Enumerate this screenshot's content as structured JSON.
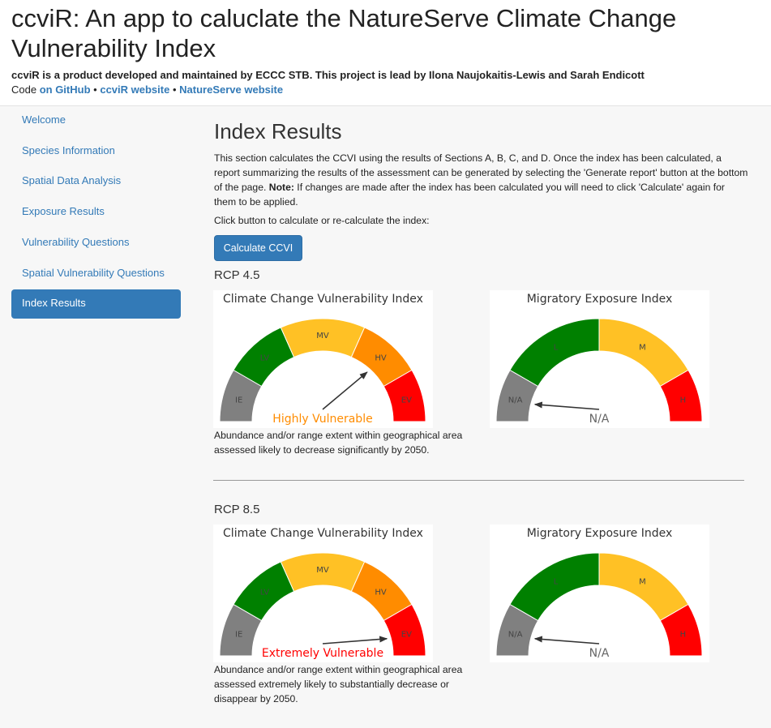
{
  "header": {
    "title": "ccviR: An app to caluclate the NatureServe Climate Change Vulnerability Index",
    "byline": "ccviR is a product developed and maintained by ECCC STB. This project is lead by Ilona Naujokaitis-Lewis and Sarah Endicott",
    "code_prefix": "Code",
    "link_github": "on GitHub",
    "bullet": "•",
    "link_ccvir": "ccviR website",
    "link_natureserve": "NatureServe website"
  },
  "sidebar": {
    "items": [
      {
        "label": "Welcome"
      },
      {
        "label": "Species Information"
      },
      {
        "label": "Spatial Data Analysis"
      },
      {
        "label": "Exposure Results"
      },
      {
        "label": "Vulnerability Questions"
      },
      {
        "label": "Spatial Vulnerability Questions"
      },
      {
        "label": "Index Results"
      }
    ],
    "active_index": 6
  },
  "main": {
    "title": "Index Results",
    "intro_before_note": "This section calculates the CCVI using the results of Sections A, B, C, and D. Once the index has been calculated, a report summarizing the results of the assessment can be generated by selecting the 'Generate report' button at the bottom of the page. ",
    "note_label": "Note:",
    "intro_after_note": " If changes are made after the index has been calculated you will need to click 'Calculate' again for them to be applied.",
    "click_text": "Click button to calculate or re-calculate the index:",
    "calc_button": "Calculate CCVI"
  },
  "colors": {
    "gray": "#808080",
    "green": "#008000",
    "yellow": "#FFC125",
    "orange": "#FF8C00",
    "red": "#FF0000",
    "accent": "#337ab7"
  },
  "results": [
    {
      "rcp": "RCP 4.5",
      "ccvi": {
        "title": "Climate Change Vulnerability Index",
        "segments": [
          "IE",
          "LV",
          "MV",
          "HV",
          "EV"
        ],
        "value": "HV",
        "value_label": "Highly Vulnerable",
        "value_color": "#FF8C00"
      },
      "mei": {
        "title": "Migratory Exposure Index",
        "segments": [
          "N/A",
          "L",
          "M",
          "H"
        ],
        "value": "N/A",
        "value_label": "N/A"
      },
      "description": "Abundance and/or range extent within geographical area assessed likely to decrease significantly by 2050."
    },
    {
      "rcp": "RCP 8.5",
      "ccvi": {
        "title": "Climate Change Vulnerability Index",
        "segments": [
          "IE",
          "LV",
          "MV",
          "HV",
          "EV"
        ],
        "value": "EV",
        "value_label": "Extremely Vulnerable",
        "value_color": "#FF0000"
      },
      "mei": {
        "title": "Migratory Exposure Index",
        "segments": [
          "N/A",
          "L",
          "M",
          "H"
        ],
        "value": "N/A",
        "value_label": "N/A"
      },
      "description": "Abundance and/or range extent within geographical area assessed extremely likely to substantially decrease or disappear by 2050."
    }
  ]
}
